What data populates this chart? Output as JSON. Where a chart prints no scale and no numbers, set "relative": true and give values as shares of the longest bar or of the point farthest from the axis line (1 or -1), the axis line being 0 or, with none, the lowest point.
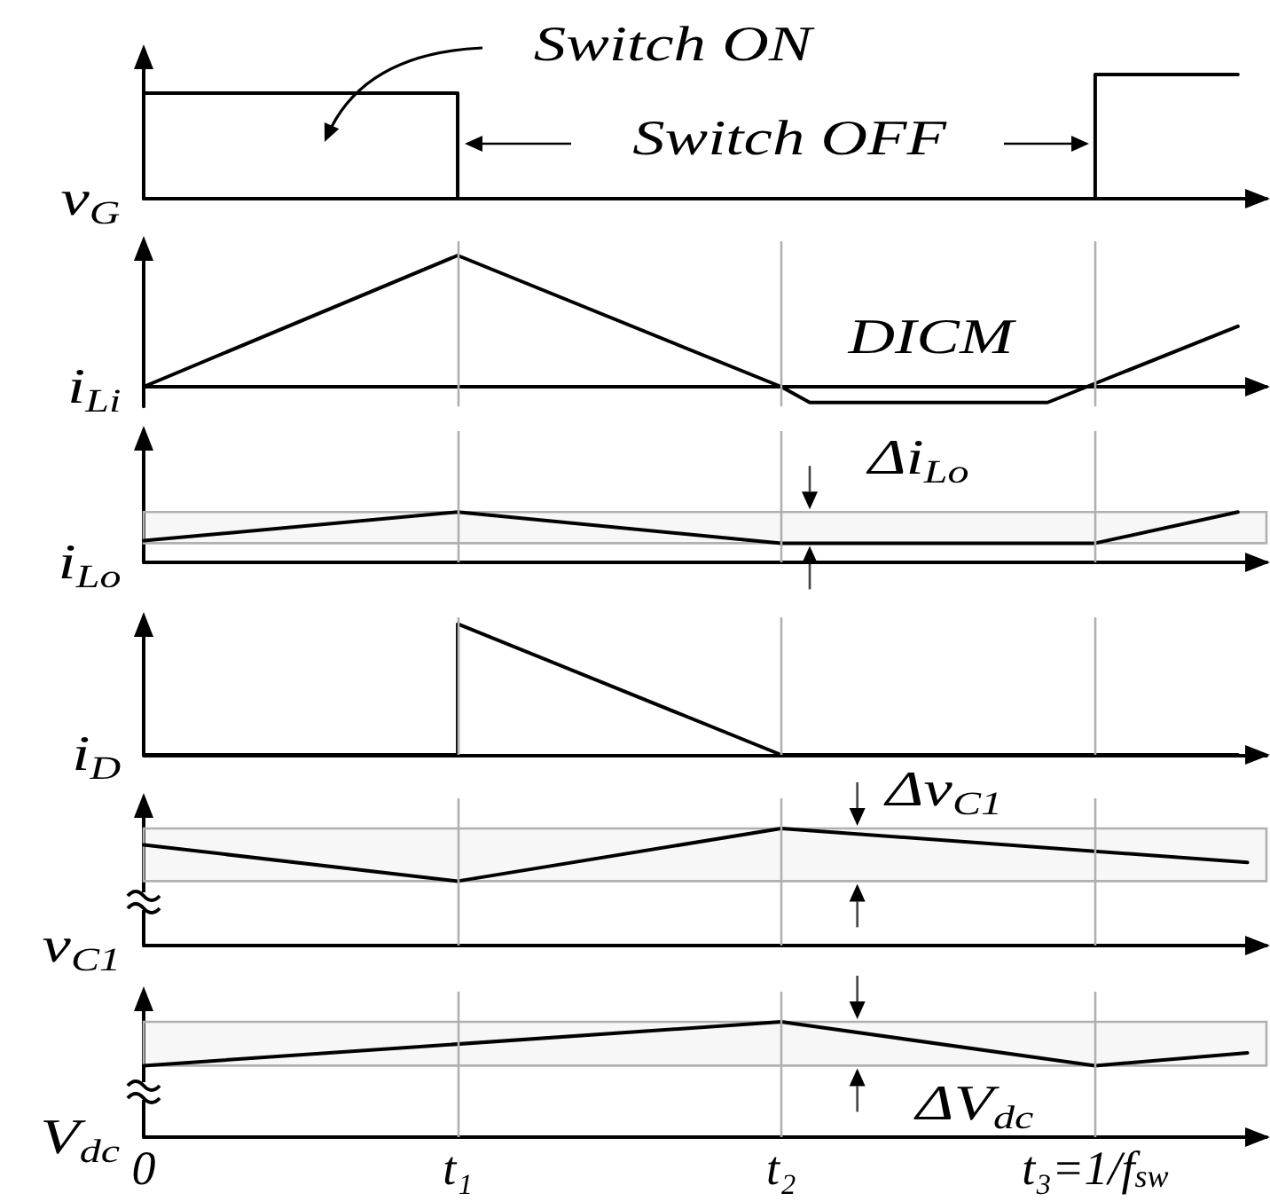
{
  "chart_data": [
    {
      "type": "step",
      "ylabel": "v$_{G}$",
      "annotations": [
        "Switch ON",
        "Switch OFF"
      ],
      "relative": true,
      "x": [
        0,
        0.33,
        1,
        1.15
      ],
      "values": [
        0.85,
        0,
        1,
        1
      ],
      "color": "#000000",
      "xlim": [
        0,
        1.18
      ],
      "tick_labels": false
    },
    {
      "type": "line",
      "ylabel": "i$_{Li}$",
      "annotations": [
        "DICM"
      ],
      "relative": true,
      "x": [
        0,
        0.33,
        0.67,
        0.7,
        0.95,
        1.15
      ],
      "values": [
        0,
        1,
        0,
        -0.12,
        -0.12,
        0.46
      ],
      "color": "#000000",
      "xlim": [
        0,
        1.18
      ],
      "tick_labels": false,
      "ref_lines": [
        {
          "axis": "x",
          "value": 0.33,
          "color": "#b0b0b0"
        },
        {
          "axis": "x",
          "value": 0.67,
          "color": "#b0b0b0"
        },
        {
          "axis": "x",
          "value": 1,
          "color": "#b0b0b0"
        }
      ]
    },
    {
      "type": "line",
      "ylabel": "i$_{Lo}$",
      "relative": true,
      "x": [
        0,
        0.33,
        0.67,
        1,
        1.15
      ],
      "values": [
        0.43,
        1,
        0.38,
        0.38,
        1
      ],
      "color": "#000000",
      "xlim": [
        0,
        1.18
      ],
      "tick_labels": false,
      "ref_lines": [
        {
          "axis": "x",
          "value": 0.33,
          "color": "#b0b0b0"
        },
        {
          "axis": "x",
          "value": 0.67,
          "color": "#b0b0b0"
        },
        {
          "axis": "x",
          "value": 1,
          "color": "#b0b0b0"
        }
      ],
      "bands": [
        {
          "axis": "y",
          "from": 0.38,
          "to": 1,
          "label": "Δi$_{Lo}$",
          "color": "#b0b0b0"
        }
      ]
    },
    {
      "type": "line",
      "ylabel": "i$_{D}$",
      "relative": true,
      "x": [
        0,
        0.33,
        0.33,
        0.67,
        1.15
      ],
      "values": [
        0,
        0,
        1,
        0,
        0
      ],
      "color": "#000000",
      "xlim": [
        0,
        1.18
      ],
      "tick_labels": false,
      "ref_lines": [
        {
          "axis": "x",
          "value": 0.33,
          "color": "#b0b0b0"
        },
        {
          "axis": "x",
          "value": 0.67,
          "color": "#b0b0b0"
        },
        {
          "axis": "x",
          "value": 1,
          "color": "#b0b0b0"
        }
      ]
    },
    {
      "type": "line",
      "ylabel": "v$_{C1}$",
      "relative": true,
      "x": [
        0,
        0.33,
        0.67,
        1.16
      ],
      "values": [
        0.86,
        0.55,
        1,
        0.71
      ],
      "color": "#000000",
      "xlim": [
        0,
        1.18
      ],
      "tick_labels": false,
      "ref_lines": [
        {
          "axis": "x",
          "value": 0.33,
          "color": "#b0b0b0"
        },
        {
          "axis": "x",
          "value": 0.67,
          "color": "#b0b0b0"
        },
        {
          "axis": "x",
          "value": 1,
          "color": "#b0b0b0"
        }
      ],
      "bands": [
        {
          "axis": "y",
          "from": 0.55,
          "to": 1,
          "label": "Δv$_{C1}$",
          "color": "#b0b0b0"
        }
      ]
    },
    {
      "type": "line",
      "ylabel": "V$_{dc}$",
      "relative": true,
      "x": [
        0,
        0.67,
        1,
        1.16
      ],
      "values": [
        0.62,
        1,
        0.62,
        0.73
      ],
      "color": "#000000",
      "xlim": [
        0,
        1.18
      ],
      "xticks": [
        0,
        {
          "value": 0.33,
          "label": "t₁"
        },
        {
          "value": 0.67,
          "label": "t₂"
        },
        {
          "value": 1,
          "label": "t₃=1/f$_{sw}$"
        }
      ],
      "tick_labels": "x",
      "ref_lines": [
        {
          "axis": "x",
          "value": 0.33,
          "color": "#b0b0b0"
        },
        {
          "axis": "x",
          "value": 0.67,
          "color": "#b0b0b0"
        },
        {
          "axis": "x",
          "value": 1,
          "color": "#b0b0b0"
        }
      ],
      "bands": [
        {
          "axis": "y",
          "from": 0.62,
          "to": 1,
          "label": "ΔV$_{dc}$",
          "color": "#b0b0b0"
        }
      ]
    }
  ]
}
